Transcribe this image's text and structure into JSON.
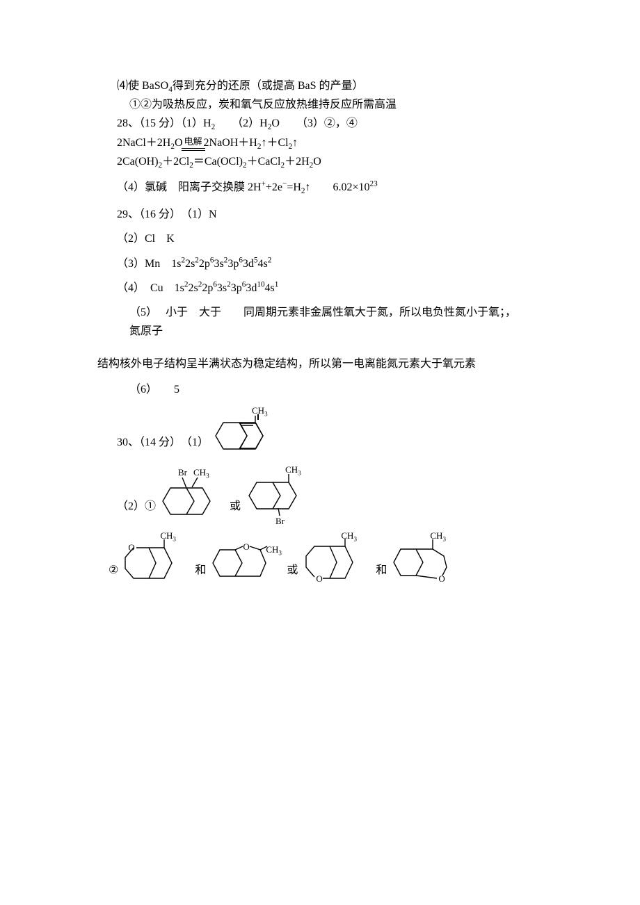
{
  "q27": {
    "p4": "⑷使 BaSO₄得到充分的还原（或提高 BaS 的产量）",
    "p4b": "①②为吸热反应，炭和氧气反应放热维持反应所需高温"
  },
  "q28": {
    "head": "28、（15 分）（1）H₂　　（2）H₂O　　（3）②，④",
    "eq1a": "2NaCl＋2H₂O",
    "eq1cond": "电解",
    "eq1b": "2NaOH＋H₂↑＋Cl₂↑",
    "eq2": "2Ca(OH)₂＋2Cl₂＝Ca(OCl)₂＋CaCl₂＋2H₂O",
    "p4": "（4）氯碱　阳离子交换膜  2H⁺+2e⁻=H₂↑　　6.02×10²³"
  },
  "q29": {
    "head": "29、（16 分）　（1）N",
    "p2": "（2）Cl　K",
    "p3": "（3）Mn　1s²2s²2p⁶3s²3p⁶3d⁵4s²",
    "p4": "（4）　Cu　1s²2s²2p⁶3s²3p⁶3d¹⁰4s¹",
    "p5a": "（5）　 小于　大于　　同周期元素非金属性氧大于氮，所以电负性氮小于氧；，氮原子",
    "p5b": "结构核外电子结构呈半满状态为稳定结构，所以第一电离能氮元素大于氧元素",
    "p6": "（6）　　5"
  },
  "q30": {
    "head": "30、（14 分）　（1）",
    "p2": "（2）①",
    "or": "或",
    "and": "和",
    "p2b": "②",
    "ch3": "CH₃",
    "br": "Br",
    "o": "O"
  },
  "style": {
    "stroke": "#000000",
    "sw": 1.4
  }
}
